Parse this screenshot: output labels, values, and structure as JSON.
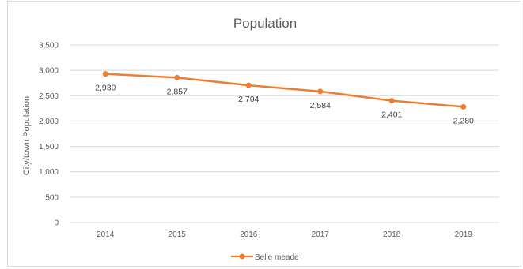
{
  "chart_data": {
    "type": "line",
    "title": "Population",
    "xlabel": "",
    "ylabel": "City/town Population",
    "categories": [
      "2014",
      "2015",
      "2016",
      "2017",
      "2018",
      "2019"
    ],
    "series": [
      {
        "name": "Belle meade",
        "values": [
          2930,
          2857,
          2704,
          2584,
          2401,
          2280
        ],
        "labels": [
          "2,930",
          "2,857",
          "2,704",
          "2,584",
          "2,401",
          "2,280"
        ],
        "color": "#ED7D31"
      }
    ],
    "ylim": [
      0,
      3500
    ],
    "yticks": [
      "0",
      "500",
      "1,000",
      "1,500",
      "2,000",
      "2,500",
      "3,000",
      "3,500"
    ],
    "grid": true,
    "legend_position": "bottom"
  }
}
